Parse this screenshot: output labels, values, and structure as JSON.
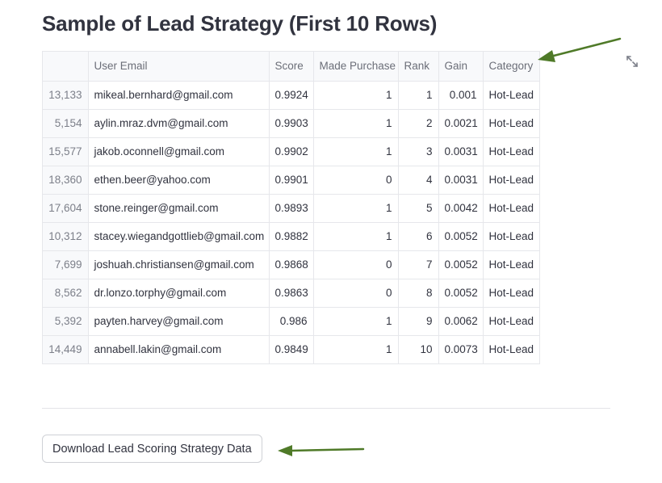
{
  "page": {
    "title": "Sample of Lead Strategy (First 10 Rows)"
  },
  "table": {
    "columns": [
      "",
      "User Email",
      "Score",
      "Made Purchase",
      "Rank",
      "Gain",
      "Category"
    ],
    "rows": [
      [
        "13,133",
        "mikeal.bernhard@gmail.com",
        "0.9924",
        "1",
        "1",
        "0.001",
        "Hot-Lead"
      ],
      [
        "5,154",
        "aylin.mraz.dvm@gmail.com",
        "0.9903",
        "1",
        "2",
        "0.0021",
        "Hot-Lead"
      ],
      [
        "15,577",
        "jakob.oconnell@gmail.com",
        "0.9902",
        "1",
        "3",
        "0.0031",
        "Hot-Lead"
      ],
      [
        "18,360",
        "ethen.beer@yahoo.com",
        "0.9901",
        "0",
        "4",
        "0.0031",
        "Hot-Lead"
      ],
      [
        "17,604",
        "stone.reinger@gmail.com",
        "0.9893",
        "1",
        "5",
        "0.0042",
        "Hot-Lead"
      ],
      [
        "10,312",
        "stacey.wiegandgottlieb@gmail.com",
        "0.9882",
        "1",
        "6",
        "0.0052",
        "Hot-Lead"
      ],
      [
        "7,699",
        "joshuah.christiansen@gmail.com",
        "0.9868",
        "0",
        "7",
        "0.0052",
        "Hot-Lead"
      ],
      [
        "8,562",
        "dr.lonzo.torphy@gmail.com",
        "0.9863",
        "0",
        "8",
        "0.0052",
        "Hot-Lead"
      ],
      [
        "5,392",
        "payten.harvey@gmail.com",
        "0.986",
        "1",
        "9",
        "0.0062",
        "Hot-Lead"
      ],
      [
        "14,449",
        "annabell.lakin@gmail.com",
        "0.9849",
        "1",
        "10",
        "0.0073",
        "Hot-Lead"
      ]
    ]
  },
  "toolbar": {
    "expand_icon": "expand-fullscreen-icon"
  },
  "download": {
    "label": "Download Lead Scoring Strategy Data"
  },
  "annotations": {
    "arrow_color": "#4f7a28"
  }
}
